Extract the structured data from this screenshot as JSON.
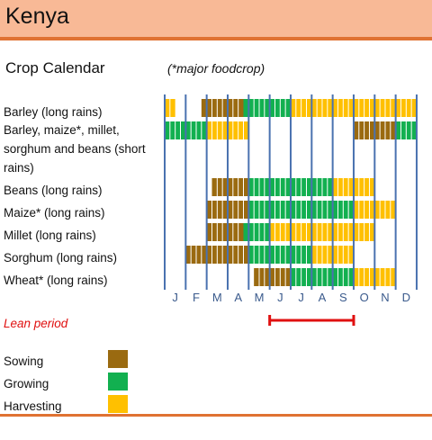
{
  "header": {
    "title": "Kenya"
  },
  "subtitle": "Crop Calendar",
  "note": "(*major foodcrop)",
  "colors": {
    "sowing": "#9a6a10",
    "growing": "#12b050",
    "harvesting": "#ffc000",
    "lean": "#e01010",
    "grid": "#4a72b0"
  },
  "chart_data": {
    "type": "table",
    "months": [
      "J",
      "F",
      "M",
      "A",
      "M",
      "J",
      "J",
      "A",
      "S",
      "O",
      "N",
      "D"
    ],
    "rows": [
      {
        "label": "Barley (long rains)",
        "segments": [
          {
            "phase": "harvesting",
            "start": 0.0,
            "end": 0.5
          },
          {
            "phase": "sowing",
            "start": 1.75,
            "end": 3.75
          },
          {
            "phase": "growing",
            "start": 3.75,
            "end": 6.0
          },
          {
            "phase": "harvesting",
            "start": 6.0,
            "end": 12.0
          }
        ]
      },
      {
        "label": "Barley, maize*, millet, sorghum and beans (short rains)",
        "segments": [
          {
            "phase": "growing",
            "start": 0.0,
            "end": 2.0
          },
          {
            "phase": "harvesting",
            "start": 2.0,
            "end": 4.0
          },
          {
            "phase": "sowing",
            "start": 9.0,
            "end": 11.0
          },
          {
            "phase": "growing",
            "start": 11.0,
            "end": 12.0
          }
        ]
      },
      {
        "label": "Beans (long rains)",
        "segments": [
          {
            "phase": "sowing",
            "start": 2.25,
            "end": 4.0
          },
          {
            "phase": "growing",
            "start": 4.0,
            "end": 8.0
          },
          {
            "phase": "harvesting",
            "start": 8.0,
            "end": 10.0
          }
        ]
      },
      {
        "label": "Maize* (long rains)",
        "segments": [
          {
            "phase": "sowing",
            "start": 2.0,
            "end": 4.0
          },
          {
            "phase": "growing",
            "start": 4.0,
            "end": 9.0
          },
          {
            "phase": "harvesting",
            "start": 9.0,
            "end": 11.0
          }
        ]
      },
      {
        "label": "Millet (long rains)",
        "segments": [
          {
            "phase": "sowing",
            "start": 2.0,
            "end": 3.75
          },
          {
            "phase": "growing",
            "start": 3.75,
            "end": 5.0
          },
          {
            "phase": "harvesting",
            "start": 5.0,
            "end": 10.0
          }
        ]
      },
      {
        "label": "Sorghum (long rains)",
        "segments": [
          {
            "phase": "sowing",
            "start": 1.0,
            "end": 4.0
          },
          {
            "phase": "growing",
            "start": 4.0,
            "end": 7.0
          },
          {
            "phase": "harvesting",
            "start": 7.0,
            "end": 9.0
          }
        ]
      },
      {
        "label": "Wheat* (long rains)",
        "segments": [
          {
            "phase": "sowing",
            "start": 4.25,
            "end": 6.0
          },
          {
            "phase": "growing",
            "start": 6.0,
            "end": 9.0
          },
          {
            "phase": "harvesting",
            "start": 9.0,
            "end": 11.0
          }
        ]
      }
    ],
    "lean_period": {
      "label": "Lean period",
      "start": 5.0,
      "end": 9.0
    },
    "legend": [
      {
        "label": "Sowing",
        "phase": "sowing"
      },
      {
        "label": "Growing",
        "phase": "growing"
      },
      {
        "label": "Harvesting",
        "phase": "harvesting"
      }
    ]
  }
}
